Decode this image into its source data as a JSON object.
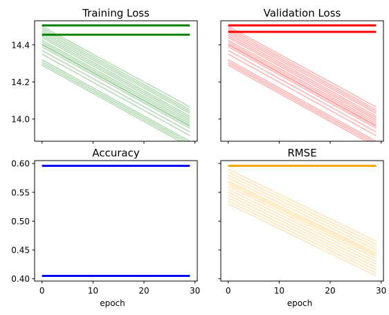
{
  "chart_data": [
    {
      "type": "line",
      "title": "Training Loss",
      "xlabel": "",
      "ylabel": "",
      "x_range": [
        0,
        29
      ],
      "xlim": [
        -1.45,
        30.45
      ],
      "ylim": [
        13.88,
        14.53
      ],
      "yticks": [
        14.0,
        14.2,
        14.4
      ],
      "ytick_labels": [
        "14.0",
        "14.2",
        "14.4"
      ],
      "xticks": [
        0,
        10,
        20,
        30
      ],
      "xtick_labels": [],
      "color": "#008000",
      "grid": false,
      "series": [
        {
          "start": 14.505,
          "end": 14.505,
          "alpha": 1,
          "width": 3
        },
        {
          "start": 14.455,
          "end": 14.455,
          "alpha": 1,
          "width": 3
        },
        {
          "start": 14.5,
          "end": 14.065,
          "alpha": 0.3,
          "width": 1.5
        },
        {
          "start": 14.49,
          "end": 14.05,
          "alpha": 0.3,
          "width": 1.5
        },
        {
          "start": 14.48,
          "end": 14.04,
          "alpha": 0.3,
          "width": 1.5
        },
        {
          "start": 14.47,
          "end": 14.03,
          "alpha": 0.3,
          "width": 1.5
        },
        {
          "start": 14.46,
          "end": 14.015,
          "alpha": 0.3,
          "width": 1.5
        },
        {
          "start": 14.45,
          "end": 14.005,
          "alpha": 0.3,
          "width": 1.5
        },
        {
          "start": 14.44,
          "end": 13.995,
          "alpha": 0.3,
          "width": 1.5
        },
        {
          "start": 14.425,
          "end": 13.985,
          "alpha": 0.3,
          "width": 1.5
        },
        {
          "start": 14.415,
          "end": 13.975,
          "alpha": 0.3,
          "width": 1.5
        },
        {
          "start": 14.405,
          "end": 13.965,
          "alpha": 0.3,
          "width": 1.5
        },
        {
          "start": 14.4,
          "end": 13.96,
          "alpha": 0.3,
          "width": 1.5
        },
        {
          "start": 14.39,
          "end": 13.95,
          "alpha": 0.3,
          "width": 1.5
        },
        {
          "start": 14.37,
          "end": 13.93,
          "alpha": 0.3,
          "width": 1.5
        },
        {
          "start": 14.35,
          "end": 13.91,
          "alpha": 0.3,
          "width": 1.5
        },
        {
          "start": 14.32,
          "end": 13.88,
          "alpha": 0.3,
          "width": 1.5
        },
        {
          "start": 14.31,
          "end": 13.87,
          "alpha": 0.3,
          "width": 1.5
        },
        {
          "start": 14.3,
          "end": 13.86,
          "alpha": 0.3,
          "width": 1.5
        },
        {
          "start": 14.29,
          "end": 13.85,
          "alpha": 0.3,
          "width": 1.5
        }
      ]
    },
    {
      "type": "line",
      "title": "Validation Loss",
      "xlabel": "",
      "ylabel": "",
      "x_range": [
        0,
        29
      ],
      "xlim": [
        -1.45,
        30.45
      ],
      "ylim": [
        13.88,
        14.53
      ],
      "yticks": [
        14.0,
        14.2,
        14.4
      ],
      "ytick_labels": [],
      "xticks": [
        0,
        10,
        20,
        30
      ],
      "xtick_labels": [],
      "color": "#ff0000",
      "grid": false,
      "series": [
        {
          "start": 14.505,
          "end": 14.505,
          "alpha": 1,
          "width": 3
        },
        {
          "start": 14.47,
          "end": 14.47,
          "alpha": 1,
          "width": 3
        },
        {
          "start": 14.5,
          "end": 14.065,
          "alpha": 0.3,
          "width": 1.5
        },
        {
          "start": 14.49,
          "end": 14.05,
          "alpha": 0.3,
          "width": 1.5
        },
        {
          "start": 14.48,
          "end": 14.04,
          "alpha": 0.3,
          "width": 1.5
        },
        {
          "start": 14.47,
          "end": 14.03,
          "alpha": 0.3,
          "width": 1.5
        },
        {
          "start": 14.46,
          "end": 14.015,
          "alpha": 0.3,
          "width": 1.5
        },
        {
          "start": 14.45,
          "end": 14.005,
          "alpha": 0.3,
          "width": 1.5
        },
        {
          "start": 14.44,
          "end": 13.995,
          "alpha": 0.3,
          "width": 1.5
        },
        {
          "start": 14.425,
          "end": 13.985,
          "alpha": 0.3,
          "width": 1.5
        },
        {
          "start": 14.415,
          "end": 13.975,
          "alpha": 0.3,
          "width": 1.5
        },
        {
          "start": 14.405,
          "end": 13.965,
          "alpha": 0.3,
          "width": 1.5
        },
        {
          "start": 14.4,
          "end": 13.96,
          "alpha": 0.3,
          "width": 1.5
        },
        {
          "start": 14.39,
          "end": 13.95,
          "alpha": 0.3,
          "width": 1.5
        },
        {
          "start": 14.37,
          "end": 13.93,
          "alpha": 0.3,
          "width": 1.5
        },
        {
          "start": 14.35,
          "end": 13.91,
          "alpha": 0.3,
          "width": 1.5
        },
        {
          "start": 14.32,
          "end": 13.88,
          "alpha": 0.3,
          "width": 1.5
        },
        {
          "start": 14.31,
          "end": 13.87,
          "alpha": 0.3,
          "width": 1.5
        },
        {
          "start": 14.3,
          "end": 13.86,
          "alpha": 0.3,
          "width": 1.5
        },
        {
          "start": 14.29,
          "end": 13.85,
          "alpha": 0.3,
          "width": 1.5
        }
      ]
    },
    {
      "type": "line",
      "title": "Accuracy",
      "xlabel": "epoch",
      "ylabel": "",
      "x_range": [
        0,
        29
      ],
      "xlim": [
        -1.45,
        30.45
      ],
      "ylim": [
        0.396,
        0.605
      ],
      "yticks": [
        0.4,
        0.45,
        0.5,
        0.55,
        0.6
      ],
      "ytick_labels": [
        "0.40",
        "0.45",
        "0.50",
        "0.55",
        "0.60"
      ],
      "xticks": [
        0,
        10,
        20,
        30
      ],
      "xtick_labels": [
        "0",
        "10",
        "20",
        "30"
      ],
      "color": "#0000ff",
      "grid": false,
      "series": [
        {
          "start": 0.596,
          "end": 0.596,
          "alpha": 1,
          "width": 3
        },
        {
          "start": 0.405,
          "end": 0.405,
          "alpha": 1,
          "width": 3
        }
      ]
    },
    {
      "type": "line",
      "title": "RMSE",
      "xlabel": "epoch",
      "ylabel": "",
      "x_range": [
        0,
        29
      ],
      "xlim": [
        -1.45,
        30.45
      ],
      "ylim": [
        0.396,
        0.605
      ],
      "yticks": [
        0.4,
        0.45,
        0.5,
        0.55,
        0.6
      ],
      "ytick_labels": [],
      "xticks": [
        0,
        10,
        20,
        30
      ],
      "xtick_labels": [
        "0",
        "10",
        "20",
        "30"
      ],
      "color": "#ffa500",
      "grid": false,
      "series": [
        {
          "start": 0.596,
          "end": 0.596,
          "alpha": 1,
          "width": 3
        },
        {
          "start": 0.59,
          "end": 0.465,
          "alpha": 0.3,
          "width": 1.5
        },
        {
          "start": 0.585,
          "end": 0.46,
          "alpha": 0.3,
          "width": 1.5
        },
        {
          "start": 0.58,
          "end": 0.455,
          "alpha": 0.3,
          "width": 1.5
        },
        {
          "start": 0.575,
          "end": 0.45,
          "alpha": 0.3,
          "width": 1.5
        },
        {
          "start": 0.57,
          "end": 0.445,
          "alpha": 0.3,
          "width": 1.5
        },
        {
          "start": 0.567,
          "end": 0.442,
          "alpha": 0.3,
          "width": 1.5
        },
        {
          "start": 0.564,
          "end": 0.439,
          "alpha": 0.3,
          "width": 1.5
        },
        {
          "start": 0.56,
          "end": 0.435,
          "alpha": 0.3,
          "width": 1.5
        },
        {
          "start": 0.555,
          "end": 0.43,
          "alpha": 0.3,
          "width": 1.5
        },
        {
          "start": 0.55,
          "end": 0.425,
          "alpha": 0.3,
          "width": 1.5
        },
        {
          "start": 0.545,
          "end": 0.42,
          "alpha": 0.3,
          "width": 1.5
        },
        {
          "start": 0.54,
          "end": 0.415,
          "alpha": 0.3,
          "width": 1.5
        },
        {
          "start": 0.535,
          "end": 0.41,
          "alpha": 0.3,
          "width": 1.5
        },
        {
          "start": 0.53,
          "end": 0.405,
          "alpha": 0.3,
          "width": 1.5
        }
      ]
    }
  ]
}
